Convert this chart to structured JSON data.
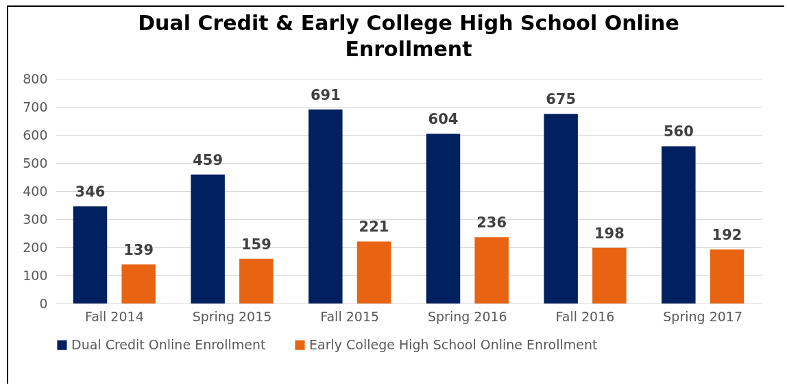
{
  "chart_data": {
    "type": "bar",
    "title": "Dual Credit & Early College High School Online Enrollment",
    "categories": [
      "Fall 2014",
      "Spring 2015",
      "Fall 2015",
      "Spring 2016",
      "Fall 2016",
      "Spring 2017"
    ],
    "series": [
      {
        "name": "Dual Credit Online Enrollment",
        "color": "#002060",
        "values": [
          346,
          459,
          691,
          604,
          675,
          560
        ]
      },
      {
        "name": "Early College High School Online Enrollment",
        "color": "#e86412",
        "values": [
          139,
          159,
          221,
          236,
          198,
          192
        ]
      }
    ],
    "ylim": [
      0,
      800
    ],
    "yticks": [
      0,
      100,
      200,
      300,
      400,
      500,
      600,
      700,
      800
    ],
    "grid": "y",
    "legend": "bottom",
    "data_labels": true
  }
}
